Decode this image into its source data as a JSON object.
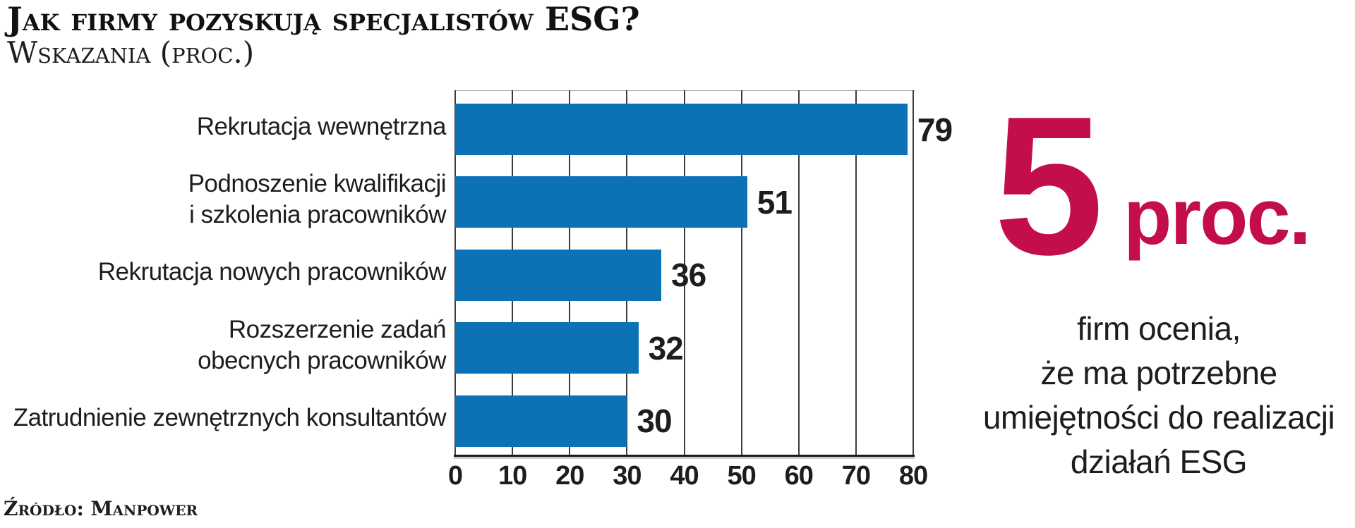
{
  "header": {
    "title": "Jak firmy pozyskują specjalistów ESG?",
    "subtitle": "Wskazania (proc.)"
  },
  "chart_data": {
    "type": "bar",
    "orientation": "horizontal",
    "title": "Jak firmy pozyskują specjalistów ESG?",
    "units_note": "Wskazania (proc.)",
    "categories": [
      "Rekrutacja wewnętrzna",
      "Podnoszenie kwalifikacji\ni szkolenia pracowników",
      "Rekrutacja nowych pracowników",
      "Rozszerzenie zadań\nobecnych pracowników",
      "Zatrudnienie zewnętrznych konsultantów"
    ],
    "values": [
      79,
      51,
      36,
      32,
      30
    ],
    "xlim": [
      0,
      80
    ],
    "xticks": [
      0,
      10,
      20,
      30,
      40,
      50,
      60,
      70,
      80
    ],
    "grid": "vertical",
    "value_labels": true,
    "legend": "none",
    "bar_color": "#0a72b5"
  },
  "callout": {
    "number": "5",
    "unit": "proc.",
    "text": "firm ocenia,\nże ma potrzebne\numiejętności do realizacji\ndziałań ESG",
    "accent_color": "#c30d4d"
  },
  "footer": {
    "source": "Źródło: Manpower"
  }
}
